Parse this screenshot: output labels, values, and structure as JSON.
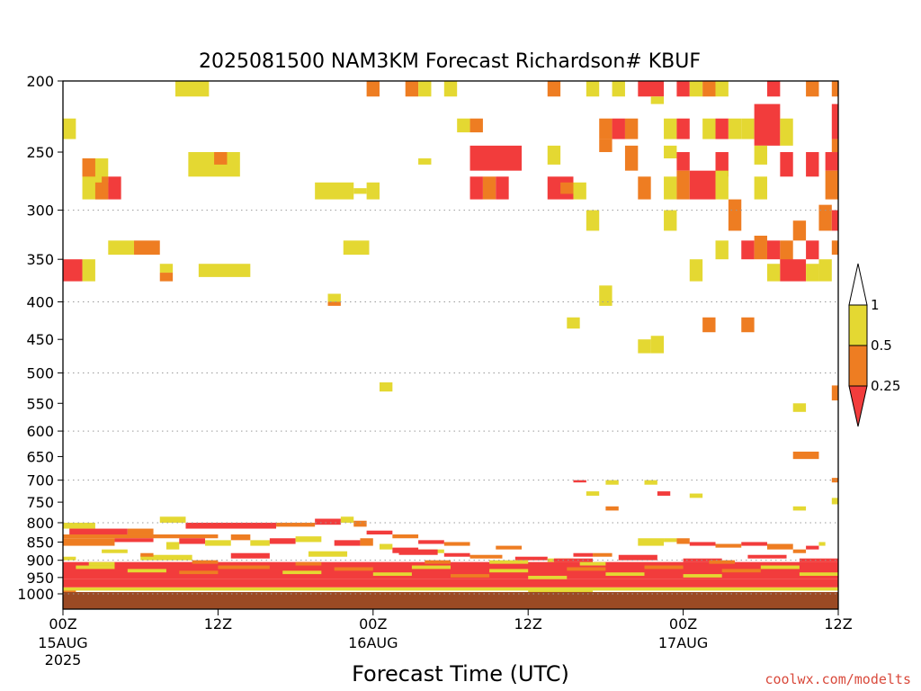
{
  "chart_data": {
    "type": "heatmap",
    "title": "2025081500 NAM3KM Forecast Richardson# KBUF",
    "xlabel": "Forecast Time (UTC)",
    "ylabel": "",
    "credit": "coolwx.com/modelts",
    "x_hours_range": [
      0,
      60
    ],
    "y_pressure_range": [
      1000,
      200
    ],
    "y_ticks": [
      200,
      250,
      300,
      350,
      400,
      450,
      500,
      550,
      600,
      650,
      700,
      750,
      800,
      850,
      900,
      950,
      1000
    ],
    "y_grid_dotted": [
      300,
      400,
      500,
      600,
      700,
      800,
      900,
      1000
    ],
    "x_ticks": [
      {
        "hour": 0,
        "label": "00Z",
        "date": "15AUG",
        "year": "2025"
      },
      {
        "hour": 12,
        "label": "12Z",
        "date": "",
        "year": ""
      },
      {
        "hour": 24,
        "label": "00Z",
        "date": "16AUG",
        "year": ""
      },
      {
        "hour": 36,
        "label": "12Z",
        "date": "",
        "year": ""
      },
      {
        "hour": 48,
        "label": "00Z",
        "date": "17AUG",
        "year": ""
      },
      {
        "hour": 60,
        "label": "12Z",
        "date": "",
        "year": ""
      }
    ],
    "colorbar": {
      "labels": [
        "1",
        "0.5",
        "0.25"
      ],
      "colors": {
        "lt_025": "#f23c3c",
        "025_05": "#ee7d22",
        "05_1": "#e4d832"
      }
    },
    "ground_color": "#9b4a24",
    "cells": [
      [
        0.0,
        1.0,
        225,
        240,
        "y"
      ],
      [
        1.5,
        3.5,
        255,
        290,
        "y"
      ],
      [
        1.5,
        2.5,
        255,
        270,
        "o"
      ],
      [
        2.5,
        3.5,
        275,
        290,
        "o"
      ],
      [
        3.5,
        4.5,
        270,
        290,
        "r"
      ],
      [
        3.0,
        3.5,
        270,
        285,
        "o"
      ],
      [
        8.7,
        11.3,
        200,
        210,
        "y"
      ],
      [
        9.7,
        13.7,
        250,
        270,
        "y"
      ],
      [
        11.7,
        12.7,
        250,
        260,
        "o"
      ],
      [
        0.0,
        1.5,
        350,
        375,
        "r"
      ],
      [
        1.5,
        2.5,
        350,
        375,
        "y"
      ],
      [
        3.5,
        5.5,
        330,
        345,
        "y"
      ],
      [
        5.5,
        7.5,
        330,
        345,
        "o"
      ],
      [
        7.5,
        8.5,
        355,
        365,
        "y"
      ],
      [
        7.5,
        8.5,
        365,
        375,
        "o"
      ],
      [
        10.5,
        14.5,
        355,
        370,
        "y"
      ],
      [
        19.5,
        22.5,
        275,
        290,
        "y"
      ],
      [
        22.5,
        23.5,
        280,
        285,
        "y"
      ],
      [
        23.5,
        24.5,
        275,
        290,
        "y"
      ],
      [
        21.7,
        23.7,
        330,
        345,
        "y"
      ],
      [
        20.5,
        21.5,
        390,
        400,
        "y"
      ],
      [
        20.5,
        21.5,
        400,
        405,
        "o"
      ],
      [
        23.5,
        24.5,
        200,
        210,
        "o"
      ],
      [
        26.5,
        27.5,
        200,
        210,
        "o"
      ],
      [
        27.5,
        28.5,
        200,
        210,
        "y"
      ],
      [
        29.5,
        30.5,
        200,
        210,
        "y"
      ],
      [
        27.5,
        28.5,
        255,
        260,
        "y"
      ],
      [
        30.5,
        31.5,
        225,
        235,
        "y"
      ],
      [
        31.5,
        32.5,
        225,
        235,
        "o"
      ],
      [
        31.5,
        35.5,
        245,
        265,
        "r"
      ],
      [
        31.5,
        32.5,
        270,
        290,
        "r"
      ],
      [
        32.5,
        33.5,
        270,
        290,
        "o"
      ],
      [
        33.5,
        34.5,
        270,
        290,
        "r"
      ],
      [
        24.5,
        25.5,
        515,
        530,
        "y"
      ],
      [
        37.5,
        38.5,
        200,
        210,
        "o"
      ],
      [
        37.5,
        38.5,
        245,
        260,
        "y"
      ],
      [
        37.5,
        39.5,
        270,
        290,
        "r"
      ],
      [
        38.5,
        39.5,
        275,
        285,
        "o"
      ],
      [
        39.5,
        40.5,
        275,
        290,
        "y"
      ],
      [
        40.5,
        41.5,
        300,
        320,
        "y"
      ],
      [
        41.5,
        42.5,
        225,
        240,
        "o"
      ],
      [
        42.5,
        43.5,
        225,
        240,
        "r"
      ],
      [
        43.5,
        44.5,
        225,
        240,
        "o"
      ],
      [
        41.5,
        42.5,
        240,
        250,
        "o"
      ],
      [
        43.5,
        44.5,
        245,
        265,
        "o"
      ],
      [
        40.5,
        41.5,
        200,
        210,
        "y"
      ],
      [
        42.5,
        43.5,
        200,
        210,
        "y"
      ],
      [
        44.5,
        45.5,
        270,
        290,
        "o"
      ],
      [
        41.5,
        42.5,
        380,
        405,
        "y"
      ],
      [
        39.0,
        40.0,
        420,
        435,
        "y"
      ],
      [
        44.5,
        45.5,
        450,
        470,
        "y"
      ],
      [
        45.5,
        46.5,
        445,
        470,
        "y"
      ],
      [
        44.5,
        46.5,
        200,
        210,
        "r"
      ],
      [
        45.5,
        46.5,
        210,
        215,
        "y"
      ],
      [
        46.5,
        47.5,
        225,
        240,
        "y"
      ],
      [
        46.5,
        47.5,
        245,
        255,
        "y"
      ],
      [
        46.5,
        47.5,
        270,
        290,
        "y"
      ],
      [
        46.5,
        47.5,
        300,
        320,
        "y"
      ],
      [
        47.5,
        48.5,
        200,
        210,
        "r"
      ],
      [
        47.5,
        48.5,
        225,
        240,
        "r"
      ],
      [
        47.5,
        48.5,
        250,
        265,
        "r"
      ],
      [
        47.5,
        48.5,
        265,
        290,
        "o"
      ],
      [
        48.5,
        50.5,
        265,
        290,
        "r"
      ],
      [
        48.5,
        49.5,
        200,
        210,
        "y"
      ],
      [
        49.5,
        50.5,
        200,
        210,
        "o"
      ],
      [
        49.5,
        50.5,
        225,
        240,
        "y"
      ],
      [
        50.5,
        51.5,
        200,
        210,
        "y"
      ],
      [
        50.5,
        51.5,
        225,
        240,
        "r"
      ],
      [
        50.5,
        51.5,
        250,
        270,
        "r"
      ],
      [
        50.5,
        51.5,
        265,
        290,
        "y"
      ],
      [
        51.5,
        52.5,
        225,
        240,
        "y"
      ],
      [
        52.5,
        53.5,
        225,
        240,
        "y"
      ],
      [
        51.5,
        52.5,
        290,
        320,
        "o"
      ],
      [
        48.5,
        49.5,
        350,
        375,
        "y"
      ],
      [
        49.5,
        50.5,
        420,
        440,
        "o"
      ],
      [
        50.5,
        51.5,
        330,
        350,
        "y"
      ],
      [
        52.5,
        53.5,
        330,
        350,
        "r"
      ],
      [
        53.5,
        54.5,
        325,
        350,
        "o"
      ],
      [
        52.5,
        53.5,
        420,
        440,
        "o"
      ],
      [
        53.5,
        55.5,
        215,
        245,
        "r"
      ],
      [
        53.5,
        54.5,
        245,
        260,
        "y"
      ],
      [
        53.5,
        54.5,
        270,
        290,
        "y"
      ],
      [
        55.5,
        56.5,
        225,
        245,
        "y"
      ],
      [
        55.5,
        56.5,
        250,
        270,
        "r"
      ],
      [
        54.5,
        55.5,
        200,
        210,
        "r"
      ],
      [
        54.5,
        55.5,
        330,
        350,
        "r"
      ],
      [
        55.5,
        56.5,
        330,
        355,
        "o"
      ],
      [
        54.5,
        55.5,
        355,
        375,
        "y"
      ],
      [
        55.5,
        57.5,
        350,
        375,
        "r"
      ],
      [
        56.5,
        57.5,
        310,
        330,
        "o"
      ],
      [
        57.5,
        58.5,
        330,
        350,
        "r"
      ],
      [
        57.5,
        58.5,
        355,
        375,
        "y"
      ],
      [
        58.5,
        59.5,
        350,
        375,
        "y"
      ],
      [
        57.5,
        58.5,
        200,
        210,
        "o"
      ],
      [
        57.5,
        58.5,
        250,
        270,
        "r"
      ],
      [
        58.5,
        59.5,
        295,
        320,
        "o"
      ],
      [
        59.5,
        60.0,
        200,
        210,
        "o"
      ],
      [
        59.5,
        60.0,
        215,
        240,
        "r"
      ],
      [
        59.5,
        60.0,
        240,
        250,
        "o"
      ],
      [
        59.0,
        60.0,
        250,
        265,
        "r"
      ],
      [
        59.0,
        60.0,
        265,
        290,
        "o"
      ],
      [
        59.5,
        60.0,
        300,
        320,
        "r"
      ],
      [
        59.5,
        60.0,
        330,
        345,
        "o"
      ],
      [
        56.5,
        57.5,
        550,
        565,
        "y"
      ],
      [
        56.5,
        58.5,
        640,
        655,
        "o"
      ],
      [
        59.5,
        60.0,
        520,
        545,
        "o"
      ],
      [
        59.5,
        60.0,
        695,
        705,
        "o"
      ],
      [
        59.5,
        60.0,
        740,
        755,
        "y"
      ],
      [
        39.5,
        40.5,
        700,
        705,
        "r"
      ],
      [
        40.5,
        41.5,
        725,
        735,
        "y"
      ],
      [
        42.0,
        43.0,
        700,
        710,
        "y"
      ],
      [
        42.0,
        43.0,
        760,
        770,
        "o"
      ],
      [
        45.0,
        46.0,
        700,
        710,
        "y"
      ],
      [
        46.0,
        47.0,
        725,
        735,
        "r"
      ],
      [
        48.5,
        49.5,
        730,
        740,
        "y"
      ],
      [
        56.5,
        57.5,
        760,
        770,
        "y"
      ],
      [
        0.0,
        12.0,
        830,
        840,
        "o"
      ],
      [
        0.0,
        2.5,
        800,
        815,
        "y"
      ],
      [
        0.5,
        5.0,
        815,
        830,
        "r"
      ],
      [
        5.0,
        7.0,
        815,
        830,
        "o"
      ],
      [
        7.5,
        9.5,
        785,
        800,
        "y"
      ],
      [
        9.5,
        16.5,
        800,
        815,
        "r"
      ],
      [
        16.5,
        19.5,
        800,
        810,
        "o"
      ],
      [
        19.5,
        21.5,
        790,
        805,
        "r"
      ],
      [
        21.5,
        22.5,
        785,
        800,
        "y"
      ],
      [
        22.5,
        23.5,
        795,
        810,
        "o"
      ],
      [
        23.5,
        25.5,
        820,
        830,
        "r"
      ],
      [
        25.5,
        27.5,
        830,
        840,
        "o"
      ],
      [
        27.5,
        29.5,
        845,
        855,
        "r"
      ],
      [
        29.5,
        31.5,
        850,
        860,
        "o"
      ],
      [
        33.5,
        35.5,
        860,
        870,
        "o"
      ],
      [
        0.0,
        4.0,
        840,
        860,
        "o"
      ],
      [
        4.0,
        7.0,
        840,
        850,
        "r"
      ],
      [
        8.0,
        9.0,
        850,
        870,
        "y"
      ],
      [
        9.0,
        11.0,
        840,
        855,
        "r"
      ],
      [
        11.0,
        13.0,
        845,
        860,
        "y"
      ],
      [
        13.0,
        14.5,
        830,
        845,
        "o"
      ],
      [
        14.5,
        16.0,
        845,
        860,
        "y"
      ],
      [
        16.0,
        18.0,
        840,
        855,
        "r"
      ],
      [
        18.0,
        20.0,
        835,
        850,
        "y"
      ],
      [
        21.0,
        23.0,
        845,
        860,
        "r"
      ],
      [
        23.0,
        24.0,
        840,
        860,
        "o"
      ],
      [
        24.5,
        25.5,
        855,
        870,
        "y"
      ],
      [
        25.5,
        27.5,
        865,
        880,
        "r"
      ],
      [
        27.5,
        29.5,
        870,
        880,
        "y"
      ],
      [
        29.5,
        31.5,
        880,
        890,
        "r"
      ],
      [
        31.5,
        34.0,
        885,
        895,
        "o"
      ],
      [
        35.0,
        37.5,
        890,
        900,
        "r"
      ],
      [
        37.5,
        39.5,
        895,
        905,
        "y"
      ],
      [
        39.5,
        41.0,
        880,
        890,
        "r"
      ],
      [
        41.0,
        42.5,
        880,
        890,
        "o"
      ],
      [
        44.5,
        46.5,
        840,
        860,
        "y"
      ],
      [
        46.5,
        47.5,
        840,
        850,
        "y"
      ],
      [
        47.5,
        48.5,
        840,
        855,
        "o"
      ],
      [
        48.5,
        50.5,
        850,
        860,
        "r"
      ],
      [
        50.5,
        52.5,
        855,
        865,
        "o"
      ],
      [
        52.5,
        54.5,
        850,
        860,
        "r"
      ],
      [
        54.5,
        56.5,
        855,
        870,
        "o"
      ],
      [
        56.5,
        57.5,
        870,
        880,
        "o"
      ],
      [
        57.5,
        58.5,
        860,
        870,
        "r"
      ],
      [
        58.5,
        59.0,
        850,
        860,
        "y"
      ],
      [
        0.0,
        60.0,
        955,
        980,
        "r"
      ],
      [
        0.0,
        60.0,
        905,
        955,
        "r"
      ],
      [
        1.0,
        4.0,
        915,
        925,
        "y"
      ],
      [
        5.0,
        8.0,
        925,
        935,
        "y"
      ],
      [
        9.0,
        12.0,
        930,
        940,
        "o"
      ],
      [
        12.0,
        16.0,
        915,
        925,
        "o"
      ],
      [
        17.0,
        20.0,
        930,
        940,
        "y"
      ],
      [
        21.0,
        24.0,
        920,
        930,
        "o"
      ],
      [
        24.0,
        27.0,
        935,
        945,
        "y"
      ],
      [
        27.0,
        30.0,
        915,
        925,
        "y"
      ],
      [
        30.0,
        33.0,
        940,
        950,
        "o"
      ],
      [
        33.0,
        36.0,
        925,
        935,
        "y"
      ],
      [
        36.0,
        39.0,
        945,
        955,
        "y"
      ],
      [
        39.0,
        42.0,
        920,
        930,
        "o"
      ],
      [
        42.0,
        45.0,
        935,
        945,
        "y"
      ],
      [
        45.0,
        48.0,
        915,
        925,
        "o"
      ],
      [
        48.0,
        51.0,
        940,
        950,
        "y"
      ],
      [
        51.0,
        54.0,
        925,
        935,
        "o"
      ],
      [
        54.0,
        57.0,
        915,
        925,
        "y"
      ],
      [
        57.0,
        60.0,
        935,
        945,
        "y"
      ],
      [
        0.0,
        60.0,
        980,
        990,
        "y"
      ],
      [
        6.0,
        10.0,
        885,
        900,
        "y"
      ],
      [
        13.0,
        16.0,
        880,
        895,
        "r"
      ],
      [
        19.0,
        22.0,
        875,
        890,
        "y"
      ],
      [
        26.0,
        29.0,
        870,
        885,
        "r"
      ],
      [
        33.0,
        36.0,
        900,
        910,
        "y"
      ],
      [
        38.0,
        41.0,
        895,
        905,
        "r"
      ],
      [
        43.0,
        46.0,
        885,
        900,
        "r"
      ],
      [
        48.0,
        51.0,
        895,
        905,
        "r"
      ],
      [
        53.0,
        56.0,
        885,
        895,
        "r"
      ],
      [
        57.0,
        60.0,
        895,
        905,
        "r"
      ],
      [
        2.0,
        4.0,
        905,
        915,
        "y"
      ],
      [
        10.0,
        12.0,
        900,
        910,
        "o"
      ],
      [
        18.0,
        20.0,
        905,
        915,
        "o"
      ],
      [
        28.0,
        30.0,
        900,
        910,
        "o"
      ],
      [
        40.0,
        42.0,
        905,
        915,
        "y"
      ],
      [
        50.0,
        52.0,
        900,
        910,
        "o"
      ],
      [
        0.0,
        1.0,
        890,
        900,
        "y"
      ],
      [
        3.0,
        5.0,
        870,
        880,
        "y"
      ],
      [
        6.0,
        7.0,
        880,
        890,
        "o"
      ],
      [
        0.0,
        1.0,
        990,
        1000,
        "o"
      ],
      [
        36.0,
        41.0,
        990,
        1000,
        "y"
      ]
    ]
  }
}
